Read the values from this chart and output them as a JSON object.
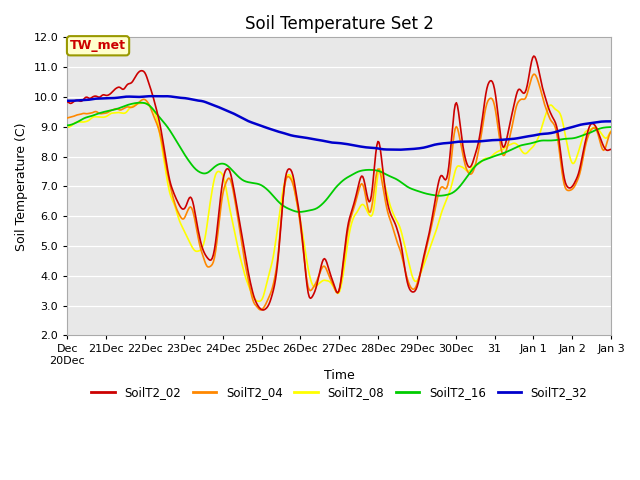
{
  "title": "Soil Temperature Set 2",
  "xlabel": "Time",
  "ylabel": "Soil Temperature (C)",
  "ylim": [
    2.0,
    12.0
  ],
  "yticks": [
    2.0,
    3.0,
    4.0,
    5.0,
    6.0,
    7.0,
    8.0,
    9.0,
    10.0,
    11.0,
    12.0
  ],
  "bg_color": "#e8e8e8",
  "series_colors": {
    "SoilT2_02": "#cc0000",
    "SoilT2_04": "#ff8800",
    "SoilT2_08": "#ffff00",
    "SoilT2_16": "#00cc00",
    "SoilT2_32": "#0000cc"
  },
  "annotation": "TW_met",
  "annotation_color": "#cc0000",
  "annotation_bg": "#ffffcc",
  "annotation_border": "#999900",
  "xtick_labels": [
    "Dec\n20Dec",
    "21Dec",
    "22Dec",
    "23Dec",
    "24Dec",
    "25Dec",
    "26Dec",
    "27Dec",
    "28Dec",
    "29Dec",
    "30Dec",
    "31",
    "Jan 1",
    "Jan 2",
    "Jan 3"
  ]
}
